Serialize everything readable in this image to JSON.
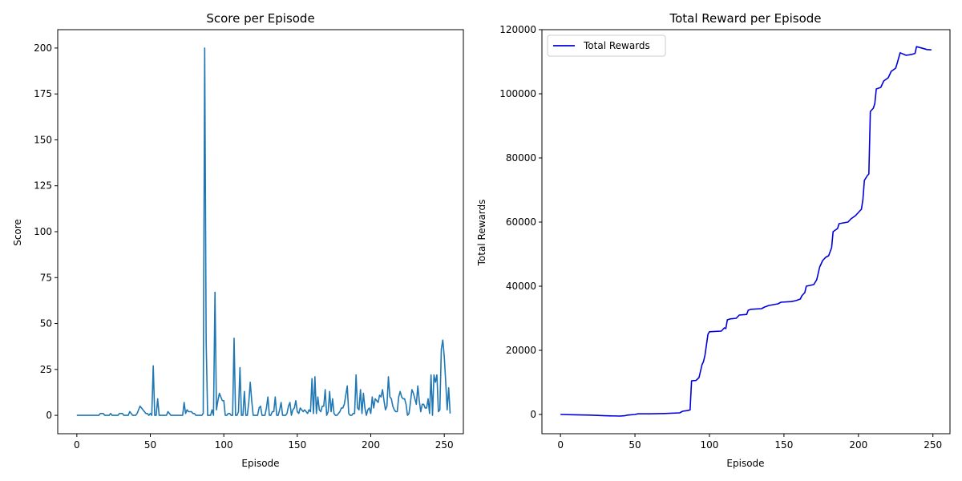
{
  "chart_data": [
    {
      "type": "line",
      "title": "Score per Episode",
      "xlabel": "Episode",
      "ylabel": "Score",
      "xlim": [
        -13,
        263
      ],
      "ylim": [
        -10,
        210
      ],
      "xticks": [
        0,
        50,
        100,
        150,
        200,
        250
      ],
      "yticks": [
        0,
        25,
        50,
        75,
        100,
        125,
        150,
        175,
        200
      ],
      "grid": false,
      "color": "#1f77b4",
      "series": [
        {
          "x_start": 0,
          "values": [
            0,
            0,
            0,
            0,
            0,
            0,
            0,
            0,
            0,
            0,
            0,
            0,
            0,
            0,
            0,
            0,
            1,
            1,
            1,
            0,
            0,
            0,
            0,
            1,
            0,
            0,
            0,
            0,
            0,
            1,
            1,
            1,
            0,
            0,
            0,
            0,
            2,
            1,
            0,
            0,
            0,
            1,
            3,
            5,
            4,
            3,
            2,
            1,
            1,
            0,
            1,
            0,
            27,
            0,
            0,
            9,
            0,
            0,
            0,
            0,
            0,
            0,
            2,
            1,
            0,
            0,
            0,
            0,
            0,
            0,
            0,
            0,
            0,
            7,
            1,
            3,
            2,
            2,
            2,
            1,
            1,
            0,
            0,
            0,
            0,
            0,
            1,
            200,
            40,
            0,
            0,
            0,
            3,
            0,
            67,
            3,
            8,
            12,
            10,
            8,
            8,
            0,
            0,
            1,
            1,
            0,
            0,
            42,
            0,
            0,
            2,
            26,
            0,
            0,
            13,
            0,
            0,
            7,
            18,
            8,
            0,
            0,
            0,
            0,
            4,
            5,
            0,
            0,
            0,
            4,
            10,
            0,
            0,
            2,
            2,
            10,
            0,
            0,
            3,
            7,
            0,
            0,
            0,
            1,
            5,
            7,
            0,
            3,
            4,
            8,
            2,
            1,
            4,
            3,
            2,
            3,
            2,
            1,
            3,
            2,
            20,
            1,
            21,
            1,
            10,
            3,
            2,
            5,
            5,
            14,
            0,
            2,
            13,
            2,
            9,
            1,
            0,
            0,
            1,
            2,
            4,
            4,
            6,
            11,
            16,
            1,
            0,
            0,
            1,
            1,
            22,
            4,
            3,
            14,
            1,
            12,
            4,
            0,
            3,
            4,
            1,
            10,
            4,
            9,
            8,
            7,
            11,
            10,
            14,
            8,
            3,
            5,
            21,
            10,
            9,
            5,
            3,
            2,
            2,
            10,
            13,
            10,
            9,
            9,
            6,
            0,
            1,
            7,
            14,
            12,
            9,
            6,
            16,
            8,
            2,
            6,
            6,
            4,
            4,
            9,
            1,
            22,
            0,
            22,
            18,
            22,
            2,
            3,
            36,
            41,
            32,
            18,
            3,
            15,
            1
          ]
        }
      ]
    },
    {
      "type": "line",
      "title": "Total Reward per Episode",
      "xlabel": "Episode",
      "ylabel": "Total Rewards",
      "xlim": [
        -12.45,
        261.45
      ],
      "ylim": [
        -6000,
        120000
      ],
      "xticks": [
        0,
        50,
        100,
        150,
        200,
        250
      ],
      "yticks": [
        0,
        20000,
        40000,
        60000,
        80000,
        100000,
        120000
      ],
      "grid": false,
      "legend": "upper-left",
      "color": "#0000dd",
      "series": [
        {
          "name": "Total Rewards",
          "points": [
            [
              0,
              0
            ],
            [
              10,
              -100
            ],
            [
              20,
              -200
            ],
            [
              30,
              -400
            ],
            [
              40,
              -500
            ],
            [
              43,
              -400
            ],
            [
              45,
              -200
            ],
            [
              50,
              0
            ],
            [
              52,
              200
            ],
            [
              60,
              200
            ],
            [
              70,
              300
            ],
            [
              80,
              500
            ],
            [
              82,
              1000
            ],
            [
              85,
              1200
            ],
            [
              87,
              1400
            ],
            [
              88,
              10500
            ],
            [
              91,
              10600
            ],
            [
              93,
              11500
            ],
            [
              95,
              15500
            ],
            [
              96,
              16500
            ],
            [
              97,
              18500
            ],
            [
              99,
              25000
            ],
            [
              100,
              25800
            ],
            [
              108,
              26000
            ],
            [
              110,
              27000
            ],
            [
              111,
              26800
            ],
            [
              112,
              29500
            ],
            [
              114,
              29800
            ],
            [
              118,
              30000
            ],
            [
              120,
              31000
            ],
            [
              125,
              31200
            ],
            [
              126,
              32500
            ],
            [
              128,
              32800
            ],
            [
              135,
              33000
            ],
            [
              137,
              33500
            ],
            [
              140,
              34000
            ],
            [
              146,
              34500
            ],
            [
              148,
              35000
            ],
            [
              155,
              35200
            ],
            [
              158,
              35500
            ],
            [
              161,
              36000
            ],
            [
              162,
              37000
            ],
            [
              164,
              38000
            ],
            [
              165,
              40000
            ],
            [
              170,
              40500
            ],
            [
              172,
              42000
            ],
            [
              173,
              44000
            ],
            [
              174,
              46000
            ],
            [
              176,
              48000
            ],
            [
              178,
              49000
            ],
            [
              180,
              49500
            ],
            [
              182,
              52000
            ],
            [
              183,
              57000
            ],
            [
              186,
              58000
            ],
            [
              187,
              59500
            ],
            [
              193,
              60000
            ],
            [
              195,
              61000
            ],
            [
              198,
              62000
            ],
            [
              201,
              63500
            ],
            [
              202,
              64000
            ],
            [
              203,
              67000
            ],
            [
              204,
              73000
            ],
            [
              206,
              74500
            ],
            [
              207,
              75000
            ],
            [
              208,
              94500
            ],
            [
              210,
              95500
            ],
            [
              211,
              97000
            ],
            [
              212,
              101500
            ],
            [
              215,
              102000
            ],
            [
              217,
              104000
            ],
            [
              220,
              105000
            ],
            [
              222,
              107000
            ],
            [
              225,
              108000
            ],
            [
              226,
              109500
            ],
            [
              228,
              112800
            ],
            [
              232,
              112000
            ],
            [
              236,
              112300
            ],
            [
              238,
              112600
            ],
            [
              239,
              114700
            ],
            [
              243,
              114200
            ],
            [
              246,
              113800
            ],
            [
              249,
              113700
            ]
          ]
        }
      ]
    }
  ]
}
